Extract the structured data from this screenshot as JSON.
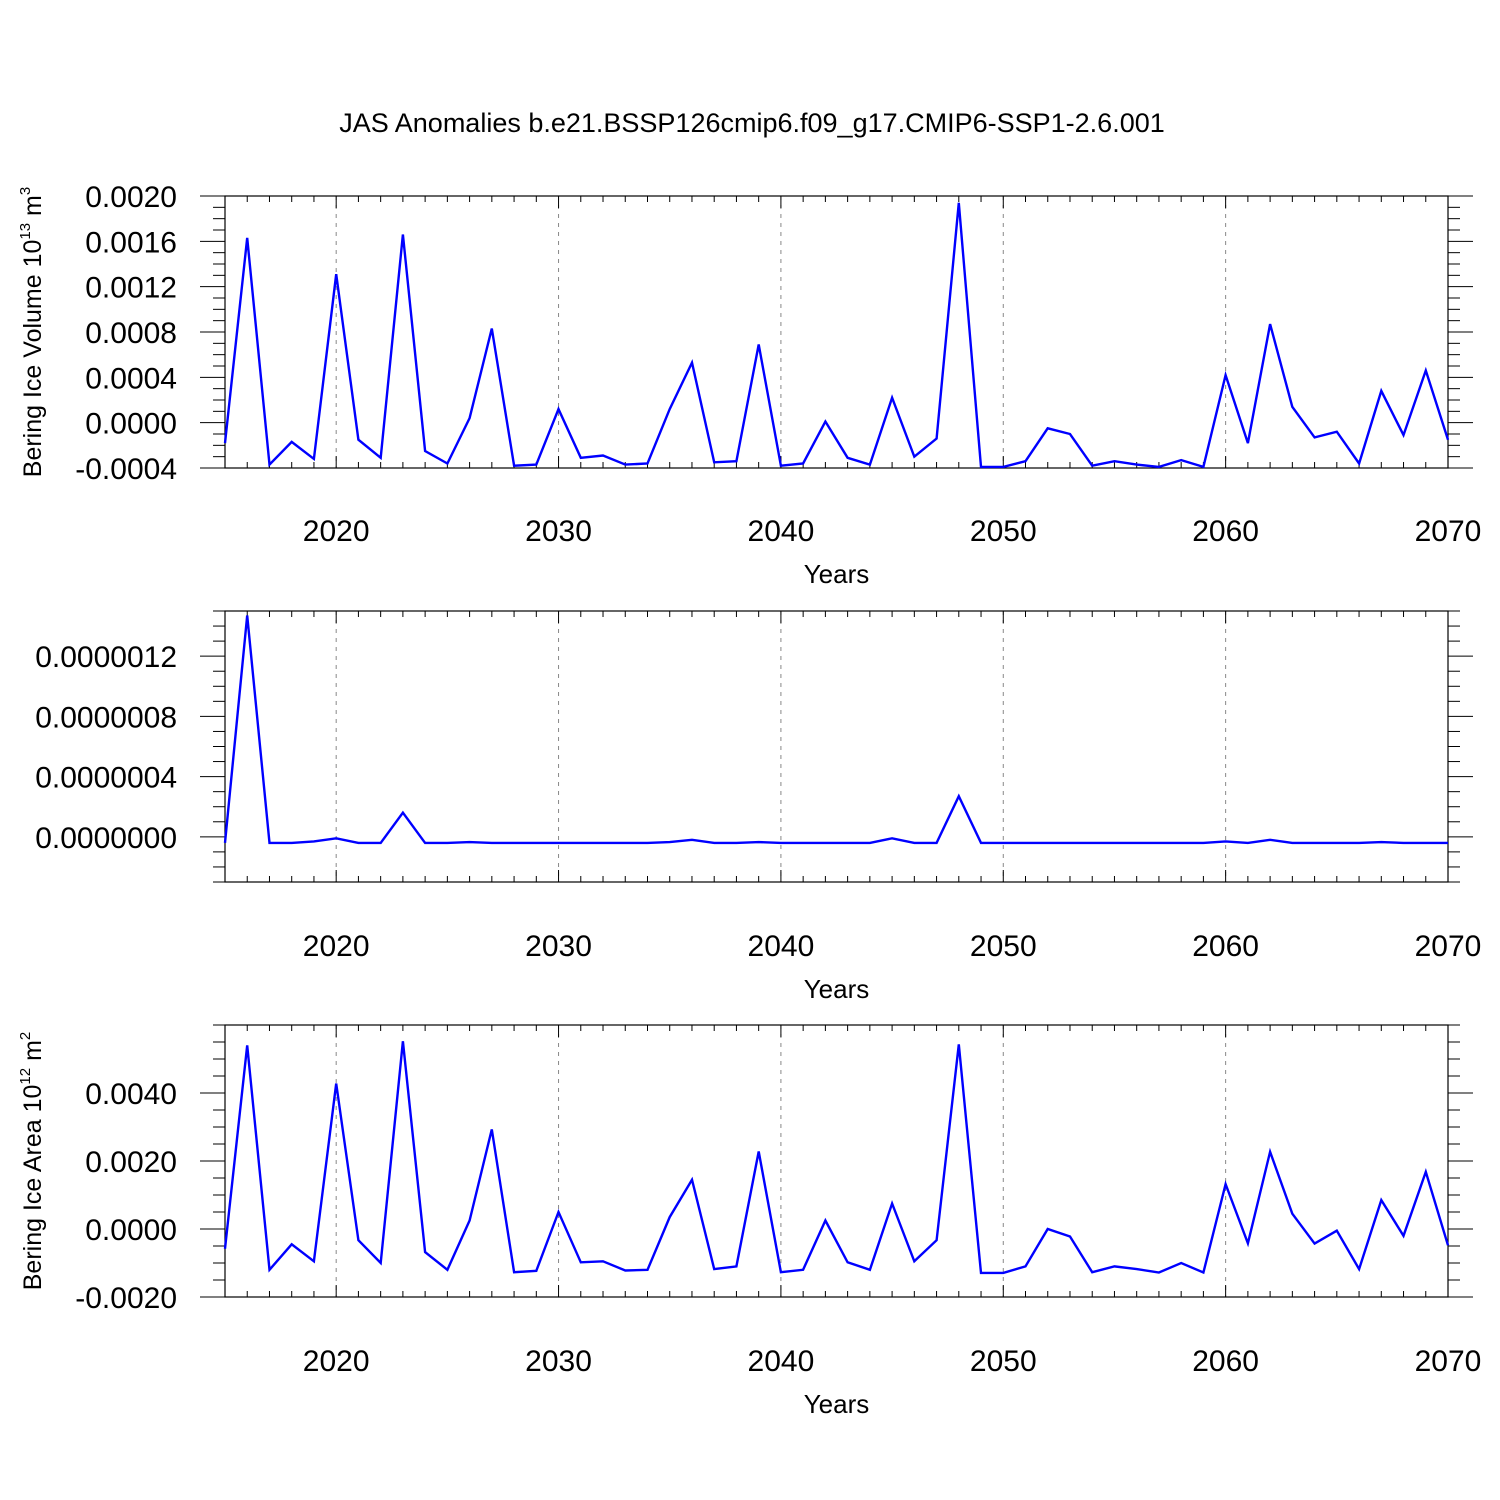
{
  "title": "JAS Anomalies b.e21.BSSP126cmip6.f09_g17.CMIP6-SSP1-2.6.001",
  "line_color": "#0000ff",
  "chart_data": [
    {
      "type": "line",
      "xlabel": "Years",
      "ylabel_prefix": "Bering Ice Volume 10",
      "ylabel_exp": "13",
      "ylabel_unit": " m",
      "ylabel_unit_exp": "3",
      "xlim": [
        2015,
        2070
      ],
      "ylim": [
        -0.0004,
        0.002
      ],
      "x_ticks": [
        2020,
        2030,
        2040,
        2050,
        2060,
        2070
      ],
      "y_ticks": [
        -0.0004,
        0.0,
        0.0004,
        0.0008,
        0.0012,
        0.0016,
        0.002
      ],
      "y_tick_labels": [
        "-0.0004",
        "0.0000",
        "0.0004",
        "0.0008",
        "0.0012",
        "0.0016",
        "0.0020"
      ],
      "grid_x": true,
      "series": [
        {
          "x": [
            2015,
            2016,
            2017,
            2018,
            2019,
            2020,
            2021,
            2022,
            2023,
            2024,
            2025,
            2026,
            2027,
            2028,
            2029,
            2030,
            2031,
            2032,
            2033,
            2034,
            2035,
            2036,
            2037,
            2038,
            2039,
            2040,
            2041,
            2042,
            2043,
            2044,
            2045,
            2046,
            2047,
            2048,
            2049,
            2050,
            2051,
            2052,
            2053,
            2054,
            2055,
            2056,
            2057,
            2058,
            2059,
            2060,
            2061,
            2062,
            2063,
            2064,
            2065,
            2066,
            2067,
            2068,
            2069,
            2070
          ],
          "values": [
            -0.00018,
            0.00163,
            -0.00037,
            -0.00017,
            -0.00032,
            0.00131,
            -0.00015,
            -0.00031,
            0.00166,
            -0.00025,
            -0.00036,
            4e-05,
            0.00083,
            -0.00038,
            -0.00037,
            0.00012,
            -0.00031,
            -0.00029,
            -0.00037,
            -0.00036,
            0.00012,
            0.00053,
            -0.00035,
            -0.00034,
            0.00069,
            -0.00038,
            -0.00036,
            1e-05,
            -0.00031,
            -0.00037,
            0.00022,
            -0.0003,
            -0.00014,
            0.00194,
            -0.00039,
            -0.00039,
            -0.00034,
            -5e-05,
            -0.0001,
            -0.00038,
            -0.00034,
            -0.00037,
            -0.00039,
            -0.00033,
            -0.00039,
            0.00042,
            -0.00018,
            0.00087,
            0.00014,
            -0.00013,
            -8e-05,
            -0.00036,
            0.00028,
            -0.00011,
            0.00046,
            -0.00015
          ]
        }
      ]
    },
    {
      "type": "line",
      "xlabel": "Years",
      "xlim": [
        2015,
        2070
      ],
      "ylim": [
        -3e-07,
        1.5e-06
      ],
      "x_ticks": [
        2020,
        2030,
        2040,
        2050,
        2060,
        2070
      ],
      "y_ticks": [
        0.0,
        4e-07,
        8e-07,
        1.2e-06
      ],
      "y_tick_labels": [
        "0.0000000",
        "0.0000004",
        "0.0000008",
        "0.0000012"
      ],
      "grid_x": true,
      "series": [
        {
          "x": [
            2015,
            2016,
            2017,
            2018,
            2019,
            2020,
            2021,
            2022,
            2023,
            2024,
            2025,
            2026,
            2027,
            2028,
            2029,
            2030,
            2031,
            2032,
            2033,
            2034,
            2035,
            2036,
            2037,
            2038,
            2039,
            2040,
            2041,
            2042,
            2043,
            2044,
            2045,
            2046,
            2047,
            2048,
            2049,
            2050,
            2051,
            2052,
            2053,
            2054,
            2055,
            2056,
            2057,
            2058,
            2059,
            2060,
            2061,
            2062,
            2063,
            2064,
            2065,
            2066,
            2067,
            2068,
            2069,
            2070
          ],
          "values": [
            -4e-08,
            1.47e-06,
            -4e-08,
            -4e-08,
            -3e-08,
            -1e-08,
            -4e-08,
            -4e-08,
            1.6e-07,
            -4e-08,
            -4e-08,
            -3.5e-08,
            -4e-08,
            -4e-08,
            -4e-08,
            -4e-08,
            -4e-08,
            -4e-08,
            -4e-08,
            -4e-08,
            -3.5e-08,
            -2e-08,
            -4e-08,
            -4e-08,
            -3.5e-08,
            -4e-08,
            -4e-08,
            -4e-08,
            -4e-08,
            -4e-08,
            -1e-08,
            -4e-08,
            -4e-08,
            2.7e-07,
            -4e-08,
            -4e-08,
            -4e-08,
            -4e-08,
            -4e-08,
            -4e-08,
            -4e-08,
            -4e-08,
            -4e-08,
            -4e-08,
            -4e-08,
            -3e-08,
            -4e-08,
            -2e-08,
            -4e-08,
            -4e-08,
            -4e-08,
            -4e-08,
            -3.5e-08,
            -4e-08,
            -4e-08,
            -4e-08
          ]
        }
      ]
    },
    {
      "type": "line",
      "xlabel": "Years",
      "ylabel_prefix": "Bering Ice Area 10",
      "ylabel_exp": "12",
      "ylabel_unit": " m",
      "ylabel_unit_exp": "2",
      "xlim": [
        2015,
        2070
      ],
      "ylim": [
        -0.002,
        0.006
      ],
      "x_ticks": [
        2020,
        2030,
        2040,
        2050,
        2060,
        2070
      ],
      "y_ticks": [
        -0.002,
        0.0,
        0.002,
        0.004
      ],
      "y_tick_labels": [
        "-0.0020",
        "0.0000",
        "0.0020",
        "0.0040"
      ],
      "grid_x": true,
      "series": [
        {
          "x": [
            2015,
            2016,
            2017,
            2018,
            2019,
            2020,
            2021,
            2022,
            2023,
            2024,
            2025,
            2026,
            2027,
            2028,
            2029,
            2030,
            2031,
            2032,
            2033,
            2034,
            2035,
            2036,
            2037,
            2038,
            2039,
            2040,
            2041,
            2042,
            2043,
            2044,
            2045,
            2046,
            2047,
            2048,
            2049,
            2050,
            2051,
            2052,
            2053,
            2054,
            2055,
            2056,
            2057,
            2058,
            2059,
            2060,
            2061,
            2062,
            2063,
            2064,
            2065,
            2066,
            2067,
            2068,
            2069,
            2070
          ],
          "values": [
            -0.00058,
            0.0054,
            -0.0012,
            -0.00045,
            -0.00095,
            0.00428,
            -0.00033,
            -0.001,
            0.00552,
            -0.00068,
            -0.0012,
            0.00025,
            0.00293,
            -0.00127,
            -0.00123,
            0.0005,
            -0.00098,
            -0.00095,
            -0.00122,
            -0.0012,
            0.00035,
            0.00145,
            -0.00118,
            -0.0011,
            0.00228,
            -0.00127,
            -0.0012,
            0.00025,
            -0.00098,
            -0.0012,
            0.00075,
            -0.00095,
            -0.00033,
            0.00543,
            -0.00129,
            -0.00129,
            -0.0011,
            0.0,
            -0.00022,
            -0.00127,
            -0.0011,
            -0.00118,
            -0.00128,
            -0.001,
            -0.00128,
            0.00132,
            -0.00042,
            0.00227,
            0.00045,
            -0.00043,
            -5e-05,
            -0.00118,
            0.00085,
            -0.0002,
            0.00168,
            -0.00048
          ]
        }
      ]
    }
  ]
}
